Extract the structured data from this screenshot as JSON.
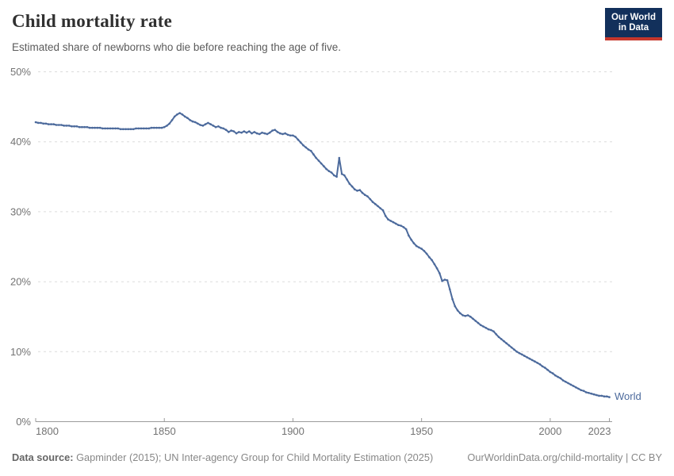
{
  "header": {
    "title": "Child mortality rate",
    "subtitle": "Estimated share of newborns who die before reaching the age of five.",
    "logo": {
      "line1": "Our World",
      "line2": "in Data"
    }
  },
  "footer": {
    "source_label": "Data source:",
    "source_text": " Gapminder (2015); UN Inter-agency Group for Child Mortality Estimation (2025)",
    "link_text": "OurWorldinData.org/child-mortality | CC BY"
  },
  "colors": {
    "line": "#4C6A9C",
    "grid": "#dcdcdc",
    "axis": "#9b9b9b",
    "tick_label": "#737373",
    "logo_bg": "#12305b",
    "logo_red": "#c5372c",
    "title_text": "#303030"
  },
  "chart_data": {
    "type": "line",
    "title": "Child mortality rate",
    "subtitle": "Estimated share of newborns who die before reaching the age of five.",
    "xlabel": "",
    "ylabel": "",
    "xlim": [
      1800,
      2023
    ],
    "ylim": [
      0,
      50
    ],
    "x_ticks": [
      1800,
      1850,
      1900,
      1950,
      2000,
      2023
    ],
    "y_ticks": [
      0,
      10,
      20,
      30,
      40,
      50
    ],
    "y_tick_suffix": "%",
    "grid": "horizontal-dashed",
    "legend": "end-of-line-label",
    "series": [
      {
        "name": "World",
        "color": "#4C6A9C",
        "x_start": 1800,
        "x_step": 1,
        "values": [
          42.8,
          42.7,
          42.7,
          42.6,
          42.6,
          42.5,
          42.5,
          42.5,
          42.4,
          42.4,
          42.4,
          42.3,
          42.3,
          42.3,
          42.2,
          42.2,
          42.2,
          42.1,
          42.1,
          42.1,
          42.1,
          42.0,
          42.0,
          42.0,
          42.0,
          42.0,
          41.9,
          41.9,
          41.9,
          41.9,
          41.9,
          41.9,
          41.9,
          41.8,
          41.8,
          41.8,
          41.8,
          41.8,
          41.8,
          41.9,
          41.9,
          41.9,
          41.9,
          41.9,
          41.9,
          42.0,
          42.0,
          42.0,
          42.0,
          42.0,
          42.1,
          42.3,
          42.6,
          43.1,
          43.6,
          43.9,
          44.1,
          43.9,
          43.6,
          43.4,
          43.1,
          42.9,
          42.8,
          42.6,
          42.4,
          42.3,
          42.5,
          42.7,
          42.5,
          42.3,
          42.1,
          42.2,
          42.0,
          41.9,
          41.7,
          41.4,
          41.6,
          41.5,
          41.2,
          41.4,
          41.3,
          41.5,
          41.3,
          41.5,
          41.2,
          41.4,
          41.2,
          41.1,
          41.3,
          41.2,
          41.1,
          41.3,
          41.6,
          41.7,
          41.4,
          41.2,
          41.1,
          41.2,
          41.0,
          40.9,
          40.9,
          40.7,
          40.3,
          39.9,
          39.5,
          39.2,
          38.9,
          38.7,
          38.2,
          37.7,
          37.3,
          36.9,
          36.5,
          36.1,
          35.8,
          35.6,
          35.2,
          35.0,
          37.7,
          35.4,
          35.2,
          34.6,
          34.0,
          33.6,
          33.2,
          33.0,
          33.1,
          32.7,
          32.4,
          32.2,
          31.8,
          31.4,
          31.1,
          30.8,
          30.5,
          30.2,
          29.4,
          28.9,
          28.7,
          28.5,
          28.3,
          28.1,
          28.0,
          27.8,
          27.5,
          26.6,
          26.0,
          25.5,
          25.1,
          24.9,
          24.7,
          24.4,
          24.0,
          23.5,
          23.1,
          22.5,
          21.9,
          21.2,
          20.1,
          20.3,
          20.2,
          18.9,
          17.5,
          16.5,
          15.9,
          15.5,
          15.2,
          15.1,
          15.2,
          15.0,
          14.7,
          14.4,
          14.1,
          13.8,
          13.6,
          13.4,
          13.2,
          13.1,
          12.9,
          12.5,
          12.1,
          11.8,
          11.5,
          11.2,
          10.9,
          10.6,
          10.3,
          10.0,
          9.8,
          9.6,
          9.4,
          9.2,
          9.0,
          8.8,
          8.6,
          8.4,
          8.2,
          7.9,
          7.7,
          7.4,
          7.1,
          6.9,
          6.6,
          6.4,
          6.2,
          5.9,
          5.7,
          5.5,
          5.3,
          5.1,
          4.9,
          4.7,
          4.5,
          4.4,
          4.2,
          4.1,
          4.0,
          3.9,
          3.8,
          3.7,
          3.7,
          3.6,
          3.6,
          3.5
        ]
      }
    ]
  }
}
